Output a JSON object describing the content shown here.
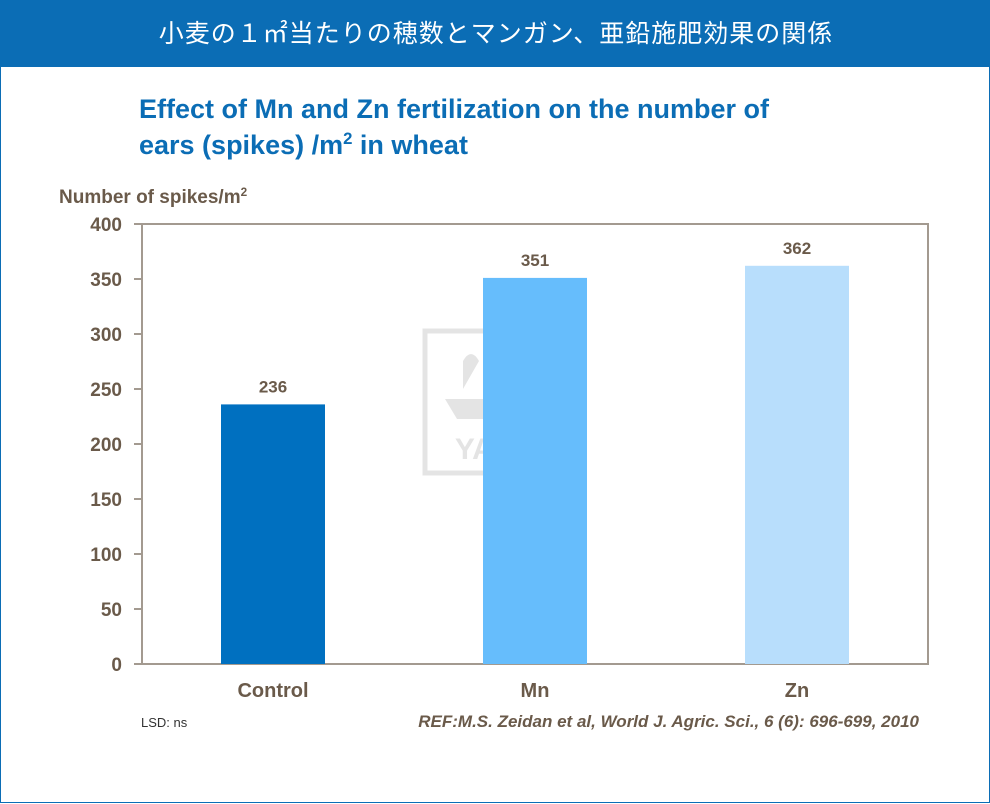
{
  "header": {
    "banner_text": "小麦の１㎡当たりの穂数とマンガン、亜鉛施肥効果の関係"
  },
  "chart_data": {
    "type": "bar",
    "title_line1": "Effect of Mn and Zn fertilization on the number of",
    "title_line2_prefix": "ears (spikes) /m",
    "title_line2_sup": "2",
    "title_line2_suffix": " in wheat",
    "ylabel": "Number of spikes/m",
    "ylabel_sup": "2",
    "xlabel": "",
    "categories": [
      "Control",
      "Mn",
      "Zn"
    ],
    "values": [
      236,
      351,
      362
    ],
    "data_labels": [
      "236",
      "351",
      "362"
    ],
    "ylim": [
      0,
      400
    ],
    "yticks": [
      0,
      50,
      100,
      150,
      200,
      250,
      300,
      350,
      400
    ],
    "ytick_labels": [
      "0",
      "50",
      "100",
      "150",
      "200",
      "250",
      "300",
      "350",
      "400"
    ],
    "bar_colors": [
      "#0070c0",
      "#66bdfc",
      "#b8defc"
    ],
    "grid": false,
    "legend": "none",
    "watermark_text": "YARA"
  },
  "footer": {
    "lsd": "LSD: ns",
    "reference": "REF:M.S. Zeidan et al, World J. Agric. Sci., 6 (6): 696-699, 2010"
  }
}
